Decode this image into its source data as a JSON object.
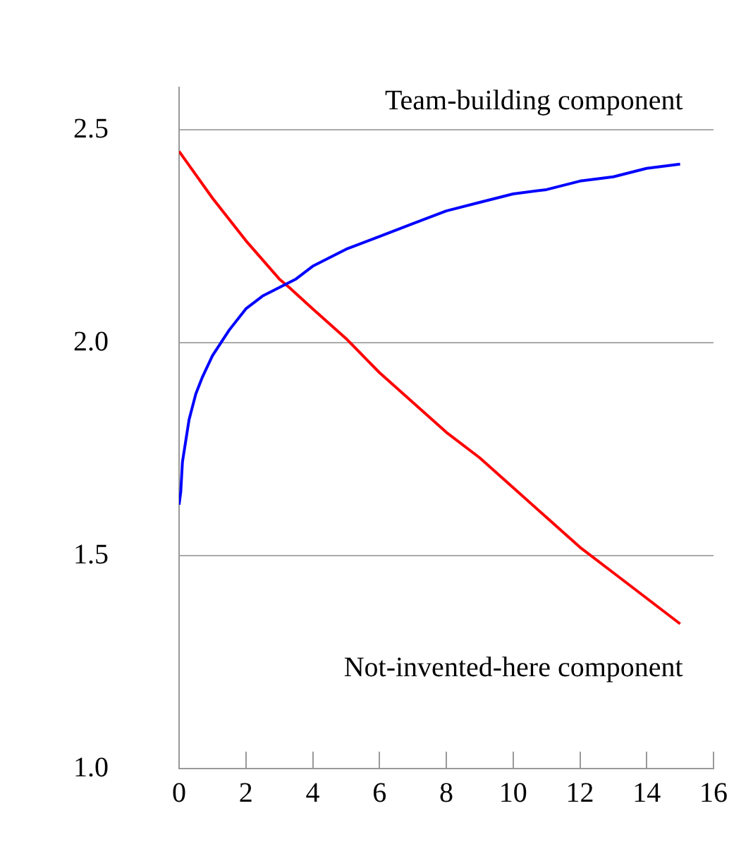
{
  "chart_data": {
    "type": "line",
    "xlim": [
      0,
      16
    ],
    "xticks": [
      0,
      2,
      4,
      6,
      8,
      10,
      12,
      14,
      16
    ],
    "ylim": [
      1.0,
      2.6
    ],
    "yticks": [
      {
        "value": 1.0,
        "label": "1.0"
      },
      {
        "value": 1.5,
        "label": "1.5"
      },
      {
        "value": 2.0,
        "label": "2.0"
      },
      {
        "value": 2.5,
        "label": "2.5"
      }
    ],
    "grid": "y",
    "legend": false,
    "marker": "none",
    "line_style": "solid",
    "series": [
      {
        "name": "Team-building component",
        "color": "#0000ff",
        "x": [
          0,
          0.05,
          0.1,
          0.2,
          0.3,
          0.5,
          0.7,
          1,
          1.5,
          2,
          2.5,
          3,
          3.5,
          4,
          5,
          6,
          7,
          8,
          9,
          10,
          11,
          12,
          13,
          14,
          15
        ],
        "values": [
          1.62,
          1.65,
          1.72,
          1.77,
          1.82,
          1.88,
          1.92,
          1.97,
          2.03,
          2.08,
          2.11,
          2.13,
          2.15,
          2.18,
          2.22,
          2.25,
          2.28,
          2.31,
          2.33,
          2.35,
          2.36,
          2.38,
          2.39,
          2.41,
          2.42
        ]
      },
      {
        "name": "Not-invented-here component",
        "color": "#ff0000",
        "x": [
          0,
          1,
          2,
          3,
          3.3,
          4,
          5,
          6,
          7,
          8,
          9,
          10,
          11,
          12,
          13,
          14,
          15
        ],
        "values": [
          2.45,
          2.34,
          2.24,
          2.15,
          2.13,
          2.08,
          2.01,
          1.93,
          1.86,
          1.79,
          1.73,
          1.66,
          1.59,
          1.52,
          1.46,
          1.4,
          1.34
        ]
      }
    ]
  }
}
